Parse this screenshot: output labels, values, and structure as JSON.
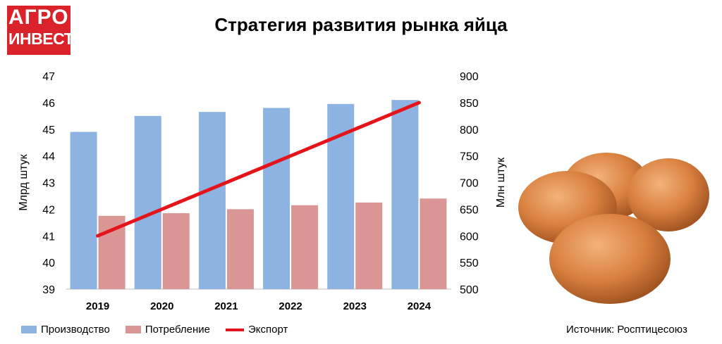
{
  "logo": {
    "line1": "АГРО",
    "line2": "ИНВЕСТОР"
  },
  "title": "Стратегия развития рынка яйца",
  "source": "Источник: Росптицесоюз",
  "colors": {
    "production": "#8db3e2",
    "consumption": "#d99694",
    "export": "#e5141b",
    "brand": "#d9222a"
  },
  "chart_data": {
    "type": "bar",
    "categories": [
      "2019",
      "2020",
      "2021",
      "2022",
      "2023",
      "2024"
    ],
    "series": [
      {
        "name": "Производство",
        "type": "bar",
        "axis": "left",
        "values": [
          44.9,
          45.5,
          45.65,
          45.8,
          45.95,
          46.1
        ]
      },
      {
        "name": "Потребление",
        "type": "bar",
        "axis": "left",
        "values": [
          41.75,
          41.85,
          42.0,
          42.15,
          42.25,
          42.4
        ]
      },
      {
        "name": "Экспорт",
        "type": "line",
        "axis": "right",
        "values": [
          600,
          650,
          700,
          750,
          800,
          850
        ]
      }
    ],
    "ylabel": "Млрд штук",
    "y2label": "Млн штук",
    "ylim": [
      39,
      47
    ],
    "y2lim": [
      500,
      900
    ],
    "yticks": [
      "39",
      "40",
      "41",
      "42",
      "43",
      "44",
      "45",
      "46",
      "47"
    ],
    "y2ticks": [
      "500",
      "550",
      "600",
      "650",
      "700",
      "750",
      "800",
      "850",
      "900"
    ],
    "grid": false,
    "legend": "bottom-left"
  }
}
